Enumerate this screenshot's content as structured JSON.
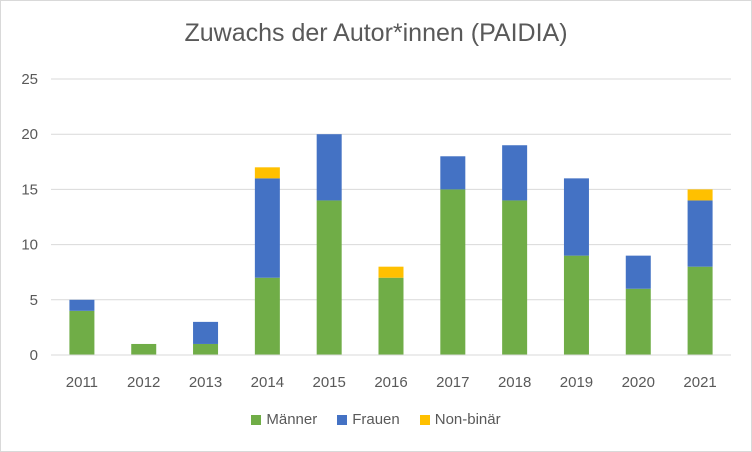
{
  "chart_data": {
    "type": "bar",
    "stacked": true,
    "title": "Zuwachs der Autor*innen (PAIDIA)",
    "xlabel": "",
    "ylabel": "",
    "categories": [
      "2011",
      "2012",
      "2013",
      "2014",
      "2015",
      "2016",
      "2017",
      "2018",
      "2019",
      "2020",
      "2021"
    ],
    "series": [
      {
        "name": "Männer",
        "color": "#70ad47",
        "values": [
          4,
          1,
          1,
          7,
          14,
          7,
          15,
          14,
          9,
          6,
          8
        ]
      },
      {
        "name": "Frauen",
        "color": "#4472c4",
        "values": [
          1,
          0,
          2,
          9,
          6,
          0,
          3,
          5,
          7,
          3,
          6
        ]
      },
      {
        "name": "Non-binär",
        "color": "#ffc000",
        "values": [
          0,
          0,
          0,
          1,
          0,
          1,
          0,
          0,
          0,
          0,
          1
        ]
      }
    ],
    "ylim": [
      0,
      25
    ],
    "yticks": [
      "0",
      "5",
      "10",
      "15",
      "20",
      "25"
    ],
    "grid": true,
    "legend": "bottom"
  }
}
